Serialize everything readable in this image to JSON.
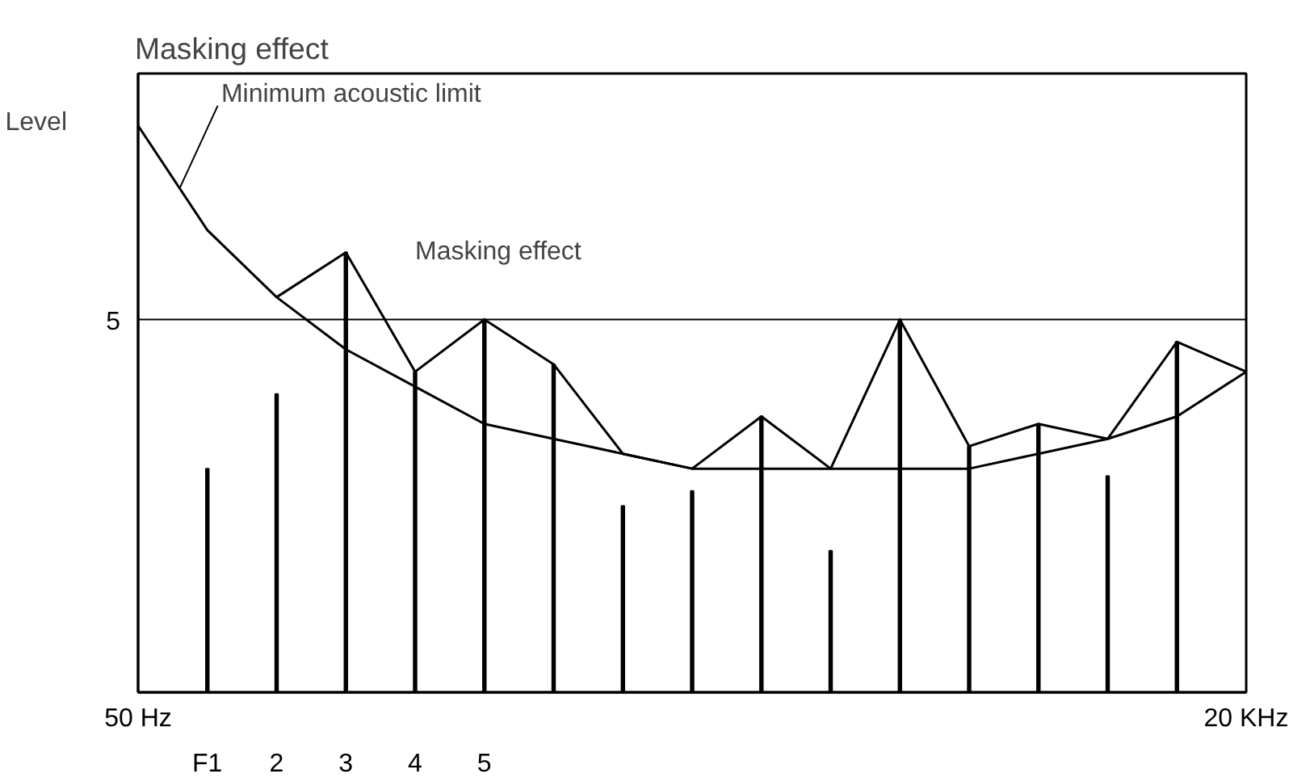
{
  "chart_data": {
    "type": "bar",
    "title": "Masking effect",
    "ylabel": "Level",
    "categories": [
      "50 Hz",
      "F1",
      "2",
      "3",
      "4",
      "5",
      null,
      null,
      null,
      null,
      null,
      null,
      null,
      null,
      null,
      null,
      "20 KHz"
    ],
    "ylim": [
      0,
      8.3
    ],
    "yticks": [
      5
    ],
    "series": [
      {
        "color": "#000000",
        "values": [
          null,
          3.0,
          4.0,
          5.9,
          4.3,
          5.0,
          4.4,
          2.5,
          2.7,
          3.7,
          1.9,
          5.0,
          3.3,
          3.6,
          2.9,
          4.7,
          null
        ]
      },
      {
        "type": "line",
        "name": "Minimum acoustic limit",
        "color": "#000000",
        "values": [
          7.6,
          6.2,
          5.3,
          4.6,
          4.1,
          3.6,
          3.4,
          3.2,
          3.0,
          3.0,
          3.0,
          3.0,
          3.0,
          3.2,
          3.4,
          3.7,
          4.3
        ]
      },
      {
        "type": "line",
        "name": "Masking effect",
        "color": "#000000",
        "values": [
          null,
          null,
          5.3,
          5.9,
          4.3,
          5.0,
          4.4,
          3.2,
          3.0,
          3.7,
          3.0,
          5.0,
          3.3,
          3.6,
          3.4,
          4.7,
          4.3
        ]
      }
    ],
    "ref_lines": [
      {
        "axis": "y",
        "value": 5
      }
    ],
    "grid": false
  }
}
